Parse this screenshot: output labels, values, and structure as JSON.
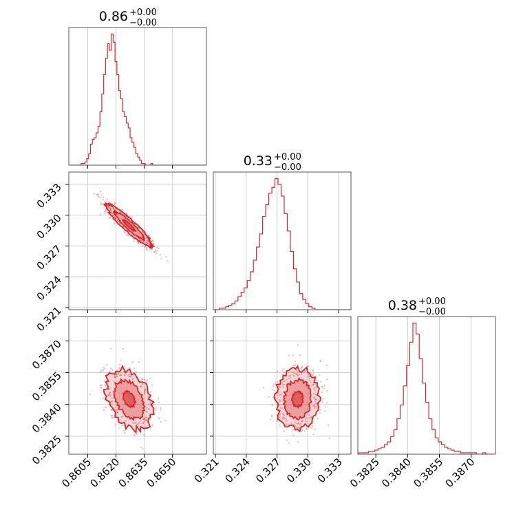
{
  "colors": {
    "accent": "#d62728",
    "grid": "#cccccc",
    "frame": "#555555"
  },
  "chart_data": [
    {
      "type": "histogram",
      "parameter_index": 0,
      "title": {
        "value": "0.86",
        "upper": "+0.00",
        "lower": "−0.00"
      },
      "xlim": [
        0.8595,
        0.8668
      ],
      "grid": true,
      "histogram": {
        "bin_start": 0.86015,
        "bin_width": 0.0001,
        "counts": [
          1,
          1,
          2,
          4,
          7,
          13,
          16,
          17,
          20,
          24,
          33,
          44,
          56,
          66,
          75,
          71,
          81,
          76,
          64,
          56,
          46,
          41,
          33,
          30,
          26,
          23,
          17,
          14,
          11,
          7,
          5,
          3,
          1,
          1,
          0,
          0,
          0,
          1,
          0,
          0,
          0
        ]
      }
    },
    {
      "type": "scatter",
      "parameter_index": [
        0,
        1
      ],
      "xlim": [
        0.8595,
        0.8668
      ],
      "ylim": [
        0.3208,
        0.3342
      ],
      "yticks": [
        "0.321",
        "0.324",
        "0.327",
        "0.330",
        "0.333"
      ],
      "grid": true,
      "density": {
        "center": [
          0.8627,
          0.329
        ],
        "sd": [
          0.00062,
          0.00105
        ],
        "corr": -0.93,
        "levels": [
          "1-sigma",
          "2-sigma"
        ]
      }
    },
    {
      "type": "histogram",
      "parameter_index": 1,
      "title": {
        "value": "0.33",
        "upper": "+0.00",
        "lower": "−0.00"
      },
      "xlim": [
        0.3208,
        0.3342
      ],
      "grid": true,
      "histogram": {
        "bin_start": 0.3214,
        "bin_width": 0.0003,
        "counts": [
          1,
          1,
          2,
          3,
          4,
          6,
          9,
          12,
          15,
          20,
          26,
          34,
          43,
          52,
          64,
          72,
          80,
          84,
          90,
          86,
          78,
          66,
          54,
          40,
          28,
          19,
          11,
          7,
          4,
          2,
          1
        ]
      }
    },
    {
      "type": "scatter",
      "parameter_index": [
        0,
        2
      ],
      "xlim": [
        0.8595,
        0.8668
      ],
      "ylim": [
        0.38165,
        0.38815
      ],
      "yticks": [
        "0.3825",
        "0.3840",
        "0.3855",
        "0.3870"
      ],
      "xticks": [
        "0.8605",
        "0.8620",
        "0.8635",
        "0.8650"
      ],
      "grid": true,
      "density": {
        "center": [
          0.8627,
          0.38425
        ],
        "sd": [
          0.00062,
          0.00072
        ],
        "corr": -0.35,
        "levels": [
          "1-sigma",
          "2-sigma"
        ]
      }
    },
    {
      "type": "scatter",
      "parameter_index": [
        1,
        2
      ],
      "xlim": [
        0.3208,
        0.3342
      ],
      "ylim": [
        0.38165,
        0.38815
      ],
      "xticks": [
        "0.321",
        "0.324",
        "0.327",
        "0.330",
        "0.333"
      ],
      "grid": true,
      "density": {
        "center": [
          0.329,
          0.38425
        ],
        "sd": [
          0.00105,
          0.00072
        ],
        "corr": 0.05,
        "levels": [
          "1-sigma",
          "2-sigma"
        ]
      }
    },
    {
      "type": "histogram",
      "parameter_index": 2,
      "title": {
        "value": "0.38",
        "upper": "+0.00",
        "lower": "−0.00"
      },
      "xlim": [
        0.38165,
        0.38815
      ],
      "xticks": [
        "0.3825",
        "0.3840",
        "0.3855",
        "0.3870"
      ],
      "grid": true,
      "histogram": {
        "bin_start": 0.3817,
        "bin_width": 0.00015,
        "counts": [
          1,
          1,
          1,
          2,
          2,
          3,
          4,
          5,
          7,
          9,
          13,
          18,
          26,
          36,
          50,
          65,
          82,
          96,
          88,
          70,
          52,
          38,
          26,
          18,
          12,
          9,
          7,
          5,
          4,
          3,
          2,
          2,
          1,
          1,
          1,
          1,
          1,
          0,
          0,
          1,
          0,
          0,
          0
        ]
      }
    }
  ]
}
